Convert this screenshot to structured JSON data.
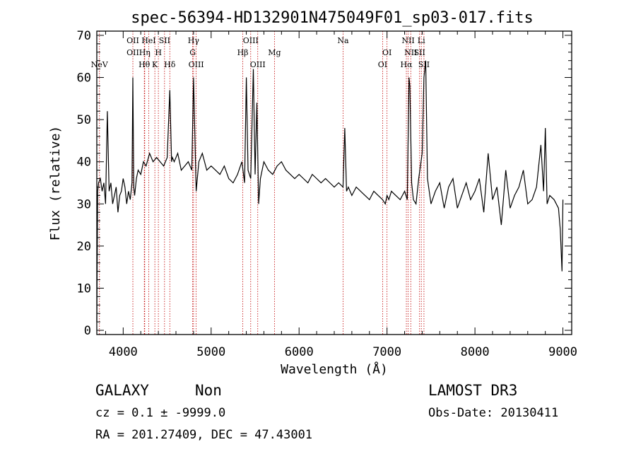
{
  "chart_data": {
    "type": "line",
    "title": "spec-56394-HD132901N475049F01_sp03-017.fits",
    "xlabel": "Wavelength (Å)",
    "ylabel": "Flux (relative)",
    "xlim": [
      3700,
      9100
    ],
    "ylim": [
      -1,
      71
    ],
    "x_ticks": [
      4000,
      5000,
      6000,
      7000,
      8000,
      9000
    ],
    "y_ticks": [
      0,
      10,
      20,
      30,
      40,
      50,
      60,
      70
    ],
    "grid": false,
    "series": [
      {
        "x": [
          3700,
          3710,
          3720,
          3740,
          3760,
          3780,
          3800,
          3820,
          3840,
          3860,
          3880,
          3900,
          3920,
          3940,
          3960,
          3980,
          4000,
          4020,
          4040,
          4060,
          4080,
          4100,
          4110,
          4120,
          4130,
          4150,
          4170,
          4200,
          4230,
          4260,
          4300,
          4340,
          4380,
          4420,
          4460,
          4500,
          4530,
          4550,
          4560,
          4580,
          4620,
          4660,
          4700,
          4740,
          4780,
          4800,
          4830,
          4860,
          4900,
          4950,
          5000,
          5050,
          5100,
          5150,
          5200,
          5250,
          5300,
          5350,
          5380,
          5400,
          5420,
          5450,
          5480,
          5500,
          5520,
          5540,
          5560,
          5600,
          5650,
          5700,
          5750,
          5800,
          5850,
          5900,
          5950,
          6000,
          6050,
          6100,
          6150,
          6200,
          6250,
          6300,
          6350,
          6400,
          6450,
          6500,
          6520,
          6540,
          6560,
          6600,
          6650,
          6700,
          6750,
          6800,
          6850,
          6900,
          6950,
          6980,
          7000,
          7020,
          7050,
          7100,
          7150,
          7200,
          7230,
          7250,
          7260,
          7280,
          7300,
          7330,
          7360,
          7400,
          7420,
          7440,
          7460,
          7500,
          7550,
          7600,
          7650,
          7700,
          7750,
          7800,
          7850,
          7900,
          7950,
          8000,
          8050,
          8100,
          8150,
          8200,
          8250,
          8300,
          8350,
          8400,
          8450,
          8500,
          8550,
          8600,
          8650,
          8700,
          8750,
          8780,
          8800,
          8820,
          8850,
          8900,
          8950,
          8970,
          8990,
          9000
        ],
        "values": [
          2,
          33,
          35,
          36,
          33,
          35,
          30,
          52,
          33,
          35,
          30,
          32,
          34,
          28,
          32,
          33,
          36,
          34,
          30,
          33,
          31,
          35,
          60,
          34,
          32,
          36,
          38,
          37,
          40,
          39,
          42,
          40,
          41,
          40,
          39,
          41,
          57,
          40,
          41,
          40,
          42,
          38,
          39,
          40,
          38,
          60,
          33,
          40,
          42,
          38,
          39,
          38,
          37,
          39,
          36,
          35,
          37,
          40,
          35,
          60,
          38,
          36,
          62,
          37,
          54,
          30,
          36,
          40,
          38,
          37,
          39,
          40,
          38,
          37,
          36,
          37,
          36,
          35,
          37,
          36,
          35,
          36,
          35,
          34,
          35,
          34,
          48,
          33,
          34,
          32,
          34,
          33,
          32,
          31,
          33,
          32,
          31,
          30,
          32,
          31,
          33,
          32,
          31,
          33,
          31,
          60,
          58,
          35,
          31,
          30,
          36,
          42,
          60,
          64,
          36,
          30,
          33,
          35,
          29,
          34,
          36,
          29,
          32,
          35,
          31,
          33,
          36,
          28,
          42,
          31,
          34,
          25,
          38,
          29,
          32,
          34,
          38,
          30,
          31,
          34,
          44,
          33,
          48,
          30,
          32,
          31,
          29,
          24,
          14,
          31
        ]
      }
    ],
    "lines": [
      {
        "x": 3730,
        "label": "NeV",
        "row": 3
      },
      {
        "x": 4110,
        "label": "OII",
        "row": 1
      },
      {
        "x": 4110,
        "label": "OII",
        "row": 2
      },
      {
        "x": 4240,
        "label": "Hθ",
        "row": 3
      },
      {
        "x": 4245,
        "label": "Hη",
        "row": 2
      },
      {
        "x": 4290,
        "label": "HeI",
        "row": 1
      },
      {
        "x": 4360,
        "label": "K",
        "row": 3
      },
      {
        "x": 4400,
        "label": "H",
        "row": 2
      },
      {
        "x": 4470,
        "label": "SII",
        "row": 1
      },
      {
        "x": 4530,
        "label": "Hδ",
        "row": 3
      },
      {
        "x": 4800,
        "label": "Hγ",
        "row": 1
      },
      {
        "x": 4790,
        "label": "G",
        "row": 2
      },
      {
        "x": 4830,
        "label": "OIII",
        "row": 3
      },
      {
        "x": 5360,
        "label": "Hβ",
        "row": 2
      },
      {
        "x": 5450,
        "label": "OIII",
        "row": 1
      },
      {
        "x": 5530,
        "label": "OIII",
        "row": 3
      },
      {
        "x": 5720,
        "label": "Mg",
        "row": 2
      },
      {
        "x": 6500,
        "label": "Na",
        "row": 1
      },
      {
        "x": 6950,
        "label": "OI",
        "row": 3
      },
      {
        "x": 7000,
        "label": "OI",
        "row": 2
      },
      {
        "x": 7240,
        "label": "NII",
        "row": 1
      },
      {
        "x": 7270,
        "label": "NII",
        "row": 2
      },
      {
        "x": 7220,
        "label": "Hα",
        "row": 3
      },
      {
        "x": 7370,
        "label": "SII",
        "row": 2
      },
      {
        "x": 7420,
        "label": "SII",
        "row": 3
      },
      {
        "x": 7390,
        "label": "Li",
        "row": 1
      }
    ]
  },
  "info": {
    "class": "GALAXY",
    "subclass": "Non",
    "survey": "LAMOST DR3",
    "cz": "cz = 0.1 ± -9999.0",
    "obs_date": "Obs-Date: 20130411",
    "radec": "RA = 201.27409, DEC =  47.43001"
  },
  "colors": {
    "axis": "#000000",
    "spectrum": "#000000",
    "lines": "#c00000"
  }
}
